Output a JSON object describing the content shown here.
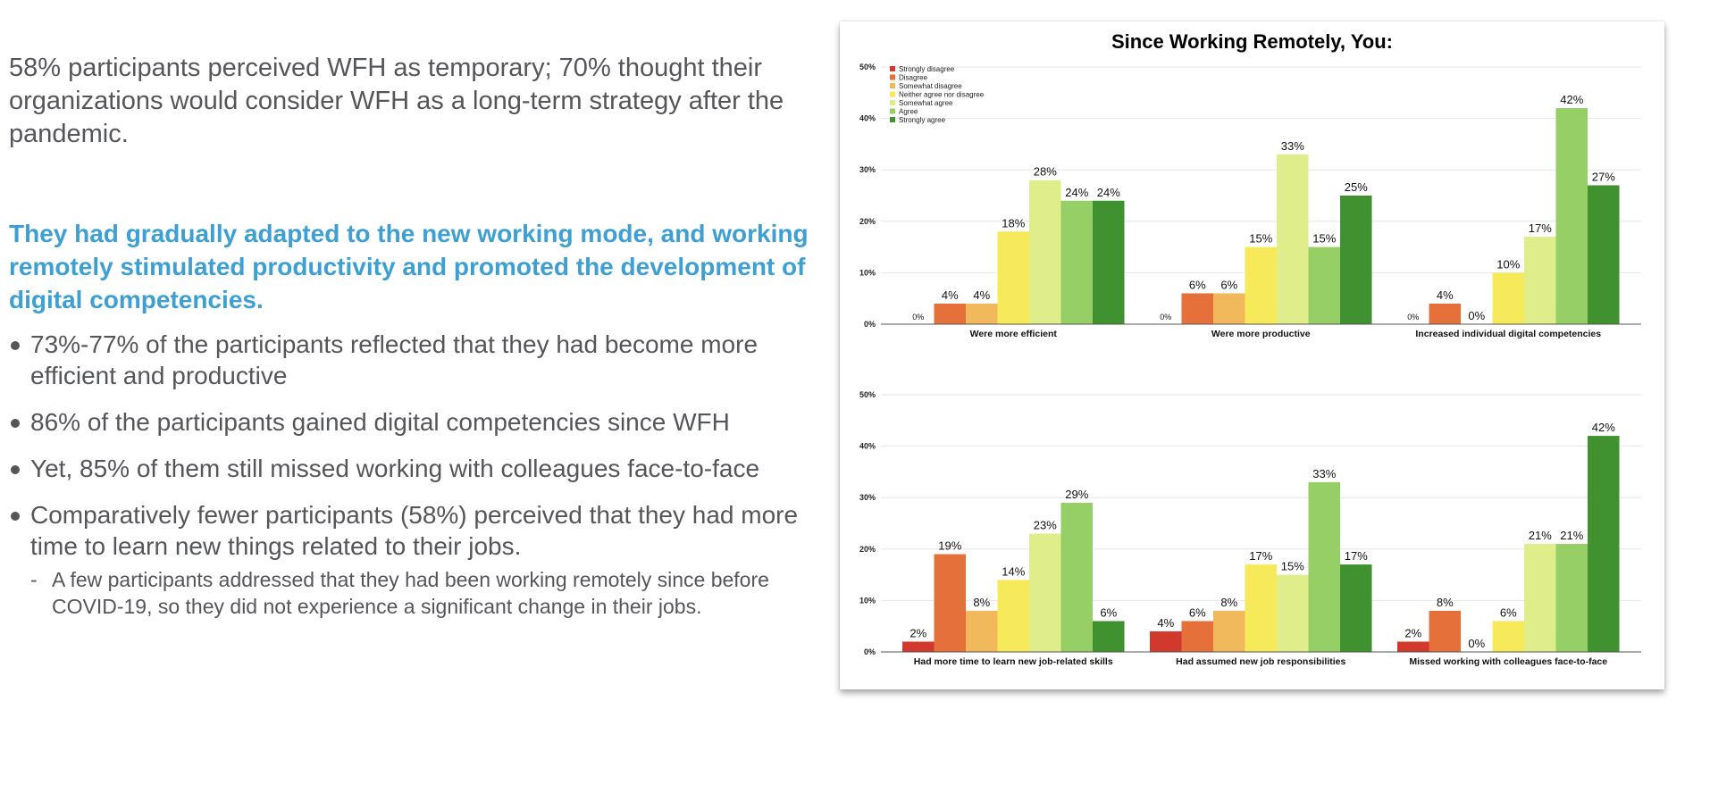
{
  "intro_text": "58% participants perceived WFH as temporary; 70% thought their organizations would consider WFH as a long-term strategy after the pandemic.",
  "headline": "They had gradually adapted to the new working mode, and working remotely stimulated productivity and promoted the development of digital competencies.",
  "bullets": [
    "73%-77% of the participants reflected that they had become more efficient and productive",
    "86% of the participants gained digital competencies since WFH",
    "Yet, 85% of them still missed working with colleagues face-to-face",
    "Comparatively fewer participants (58%) perceived that they had more time to learn new things related to their jobs."
  ],
  "sub_bullet": {
    "dash": "-",
    "text": "A few participants addressed that they had been working remotely since before COVID-19, so they did not experience a significant change in their jobs."
  },
  "colors": {
    "body_text": "#55565a",
    "headline": "#3ea0d2",
    "series": [
      "#d0392b",
      "#e5703a",
      "#f2b95c",
      "#f7ea5a",
      "#dfed8a",
      "#95cf66",
      "#3f922f"
    ]
  },
  "chart_data": {
    "type": "bar",
    "title": "Since Working Remotely, You:",
    "legend_position": "top-left",
    "grid": true,
    "ylim": [
      0,
      50
    ],
    "yticks": [
      "0%",
      "10%",
      "20%",
      "30%",
      "40%",
      "50%"
    ],
    "series_names": [
      "Strongly disagree",
      "Disagree",
      "Somewhat disagree",
      "Neither agree nor disagree",
      "Somewhat agree",
      "Agree",
      "Strongly agree"
    ],
    "rows": [
      {
        "categories": [
          "Were more efficient",
          "Were more productive",
          "Increased individual digital competencies"
        ],
        "values": [
          [
            0,
            4,
            4,
            18,
            28,
            24,
            24
          ],
          [
            0,
            6,
            6,
            15,
            33,
            15,
            25
          ],
          [
            0,
            4,
            0,
            10,
            17,
            42,
            27
          ]
        ]
      },
      {
        "categories": [
          "Had more time to learn new job-related skills",
          "Had assumed new job responsibilities",
          "Missed working with colleagues face-to-face"
        ],
        "values": [
          [
            2,
            19,
            8,
            14,
            23,
            29,
            6
          ],
          [
            4,
            6,
            8,
            17,
            15,
            33,
            17
          ],
          [
            2,
            8,
            0,
            6,
            21,
            21,
            42
          ]
        ]
      }
    ]
  }
}
